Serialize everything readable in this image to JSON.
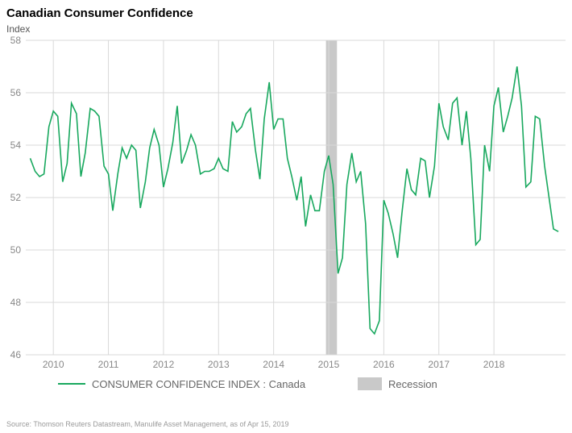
{
  "title": "Canadian Consumer Confidence",
  "subtitle": "Index",
  "source": "Source: Thomson Reuters Datastream, Manulife Asset Management, as of Apr 15, 2019",
  "chart": {
    "type": "line",
    "background_color": "#ffffff",
    "plot_background": "#ffffff",
    "grid_color": "#d9d9d9",
    "line_color": "#18a85e",
    "line_width": 1.6,
    "recession_band_color": "#c9c9c9",
    "x": {
      "min": 2009.5,
      "max": 2019.3,
      "ticks": [
        2010,
        2011,
        2012,
        2013,
        2014,
        2015,
        2016,
        2017,
        2018
      ],
      "label_color": "#888888",
      "label_fontsize": 12
    },
    "y": {
      "min": 46,
      "max": 58,
      "ticks": [
        46,
        48,
        50,
        52,
        54,
        56,
        58
      ],
      "label_color": "#888888",
      "label_fontsize": 12
    },
    "recession_bands": [
      {
        "start": 2014.95,
        "end": 2015.15
      }
    ],
    "series": [
      {
        "name": "CONSUMER CONFIDENCE INDEX : Canada",
        "color": "#18a85e",
        "data": [
          [
            2009.58,
            53.5
          ],
          [
            2009.67,
            53.0
          ],
          [
            2009.75,
            52.8
          ],
          [
            2009.83,
            52.9
          ],
          [
            2009.92,
            54.7
          ],
          [
            2010.0,
            55.3
          ],
          [
            2010.08,
            55.1
          ],
          [
            2010.17,
            52.6
          ],
          [
            2010.25,
            53.3
          ],
          [
            2010.33,
            55.6
          ],
          [
            2010.42,
            55.2
          ],
          [
            2010.5,
            52.8
          ],
          [
            2010.58,
            53.7
          ],
          [
            2010.67,
            55.4
          ],
          [
            2010.75,
            55.3
          ],
          [
            2010.83,
            55.1
          ],
          [
            2010.92,
            53.2
          ],
          [
            2011.0,
            52.9
          ],
          [
            2011.08,
            51.5
          ],
          [
            2011.17,
            52.9
          ],
          [
            2011.25,
            53.9
          ],
          [
            2011.33,
            53.5
          ],
          [
            2011.42,
            54.0
          ],
          [
            2011.5,
            53.8
          ],
          [
            2011.58,
            51.6
          ],
          [
            2011.67,
            52.6
          ],
          [
            2011.75,
            53.9
          ],
          [
            2011.83,
            54.6
          ],
          [
            2011.92,
            54.0
          ],
          [
            2012.0,
            52.4
          ],
          [
            2012.08,
            53.1
          ],
          [
            2012.17,
            54.1
          ],
          [
            2012.25,
            55.5
          ],
          [
            2012.33,
            53.3
          ],
          [
            2012.42,
            53.8
          ],
          [
            2012.5,
            54.4
          ],
          [
            2012.58,
            54.0
          ],
          [
            2012.67,
            52.9
          ],
          [
            2012.75,
            53.0
          ],
          [
            2012.83,
            53.0
          ],
          [
            2012.92,
            53.1
          ],
          [
            2013.0,
            53.5
          ],
          [
            2013.08,
            53.1
          ],
          [
            2013.17,
            53.0
          ],
          [
            2013.25,
            54.9
          ],
          [
            2013.33,
            54.5
          ],
          [
            2013.42,
            54.7
          ],
          [
            2013.5,
            55.2
          ],
          [
            2013.58,
            55.4
          ],
          [
            2013.67,
            53.8
          ],
          [
            2013.75,
            52.7
          ],
          [
            2013.83,
            55.0
          ],
          [
            2013.92,
            56.4
          ],
          [
            2014.0,
            54.6
          ],
          [
            2014.08,
            55.0
          ],
          [
            2014.17,
            55.0
          ],
          [
            2014.25,
            53.5
          ],
          [
            2014.33,
            52.8
          ],
          [
            2014.42,
            51.9
          ],
          [
            2014.5,
            52.8
          ],
          [
            2014.58,
            50.9
          ],
          [
            2014.67,
            52.1
          ],
          [
            2014.75,
            51.5
          ],
          [
            2014.83,
            51.5
          ],
          [
            2014.92,
            53.0
          ],
          [
            2015.0,
            53.6
          ],
          [
            2015.08,
            52.5
          ],
          [
            2015.17,
            49.1
          ],
          [
            2015.25,
            49.7
          ],
          [
            2015.33,
            52.5
          ],
          [
            2015.42,
            53.7
          ],
          [
            2015.5,
            52.6
          ],
          [
            2015.58,
            53.0
          ],
          [
            2015.67,
            51.0
          ],
          [
            2015.75,
            47.0
          ],
          [
            2015.83,
            46.8
          ],
          [
            2015.92,
            47.3
          ],
          [
            2016.0,
            51.9
          ],
          [
            2016.08,
            51.4
          ],
          [
            2016.17,
            50.6
          ],
          [
            2016.25,
            49.7
          ],
          [
            2016.33,
            51.4
          ],
          [
            2016.42,
            53.1
          ],
          [
            2016.5,
            52.3
          ],
          [
            2016.58,
            52.1
          ],
          [
            2016.67,
            53.5
          ],
          [
            2016.75,
            53.4
          ],
          [
            2016.83,
            52.0
          ],
          [
            2016.92,
            53.2
          ],
          [
            2017.0,
            55.6
          ],
          [
            2017.08,
            54.7
          ],
          [
            2017.17,
            54.2
          ],
          [
            2017.25,
            55.6
          ],
          [
            2017.33,
            55.8
          ],
          [
            2017.42,
            54.0
          ],
          [
            2017.5,
            55.3
          ],
          [
            2017.58,
            53.5
          ],
          [
            2017.67,
            50.2
          ],
          [
            2017.75,
            50.4
          ],
          [
            2017.83,
            54.0
          ],
          [
            2017.92,
            53.0
          ],
          [
            2018.0,
            55.5
          ],
          [
            2018.08,
            56.2
          ],
          [
            2018.17,
            54.5
          ],
          [
            2018.25,
            55.1
          ],
          [
            2018.33,
            55.8
          ],
          [
            2018.42,
            57.0
          ],
          [
            2018.5,
            55.5
          ],
          [
            2018.58,
            52.4
          ],
          [
            2018.67,
            52.6
          ],
          [
            2018.75,
            55.1
          ],
          [
            2018.83,
            55.0
          ],
          [
            2018.92,
            53.2
          ],
          [
            2019.0,
            52.0
          ],
          [
            2019.08,
            50.8
          ],
          [
            2019.17,
            50.7
          ]
        ]
      }
    ],
    "legend": {
      "items": [
        {
          "type": "line",
          "label": "CONSUMER CONFIDENCE INDEX : Canada",
          "color": "#18a85e"
        },
        {
          "type": "band",
          "label": "Recession",
          "color": "#c9c9c9"
        }
      ],
      "fontsize": 13,
      "color": "#666666"
    }
  }
}
